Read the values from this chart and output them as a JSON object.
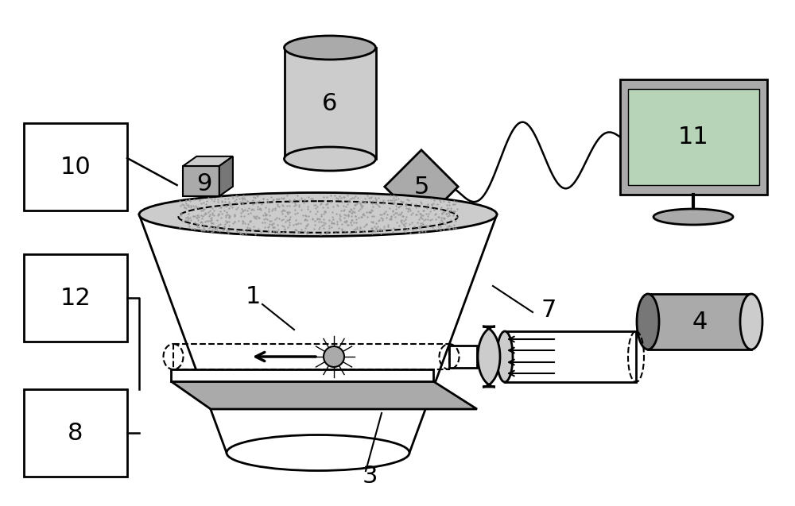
{
  "bg_color": "#ffffff",
  "lc": "#000000",
  "gl": "#cccccc",
  "gm": "#aaaaaa",
  "gd": "#777777",
  "green_screen": "#b8d4b8",
  "fs": 22
}
